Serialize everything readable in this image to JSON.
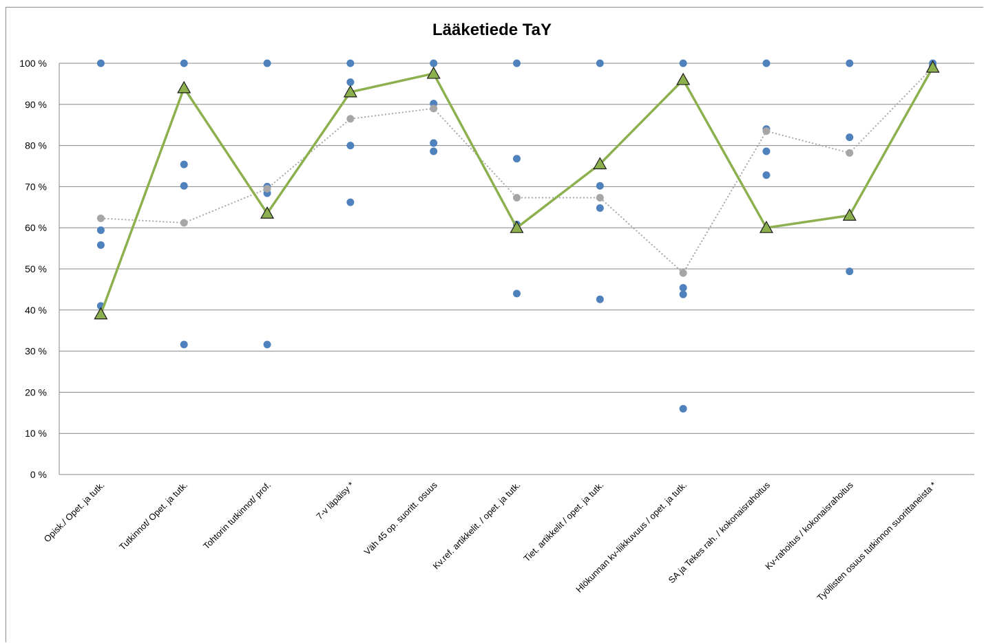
{
  "chart_data": {
    "type": "line",
    "title": "Lääketiede TaY",
    "xlabel": "",
    "ylabel": "",
    "ylim": [
      0,
      100
    ],
    "yticks": [
      "0 %",
      "10 %",
      "20 %",
      "30 %",
      "40 %",
      "50 %",
      "60 %",
      "70 %",
      "80 %",
      "90 %",
      "100 %"
    ],
    "grid": true,
    "categories": [
      "Opisk./ Opet. ja tutk.",
      "Tutkinnot/ Opet. ja tutk.",
      "Tohtorin tutkinnot/ prof.",
      "7-v läpäisy *",
      "Väh 45 op. suoritt. osuus",
      "Kv.ref. artikkelit. / opet. ja tutk.",
      "Tiet. artikkelit / opet. ja tutk.",
      "Hlökunnan kv-liikkuvuus / opet. ja tutk.",
      "SA ja Tekes rah. / kokonaisrahoitus",
      "Kv-rahoitus / kokonaisrahoitus",
      "Työllisten osuus tutkinnon suorittaneista *"
    ],
    "series": [
      {
        "style": "line-triangle",
        "color": "#8db04f",
        "values": [
          39,
          94,
          63.5,
          93,
          97.5,
          60,
          75.5,
          96,
          60,
          63,
          99
        ]
      },
      {
        "style": "dotted-line-markers",
        "color": "#a6a6a6",
        "values": [
          62.3,
          61.2,
          69.5,
          86.5,
          89,
          67.3,
          67.3,
          49,
          83.5,
          78.2,
          99
        ]
      },
      {
        "style": "scatter",
        "color": "#4f81bd",
        "points": [
          [
            0,
            100
          ],
          [
            0,
            59.4
          ],
          [
            0,
            55.8
          ],
          [
            0,
            41
          ],
          [
            1,
            100
          ],
          [
            1,
            75.4
          ],
          [
            1,
            70.2
          ],
          [
            1,
            31.6
          ],
          [
            2,
            100
          ],
          [
            2,
            70
          ],
          [
            2,
            68.4
          ],
          [
            2,
            31.6
          ],
          [
            3,
            100
          ],
          [
            3,
            95.4
          ],
          [
            3,
            80
          ],
          [
            3,
            66.2
          ],
          [
            4,
            100
          ],
          [
            4,
            90.2
          ],
          [
            4,
            80.6
          ],
          [
            4,
            78.6
          ],
          [
            5,
            100
          ],
          [
            5,
            76.8
          ],
          [
            5,
            60.8
          ],
          [
            5,
            44
          ],
          [
            6,
            100
          ],
          [
            6,
            70.2
          ],
          [
            6,
            64.8
          ],
          [
            6,
            42.6
          ],
          [
            7,
            100
          ],
          [
            7,
            45.4
          ],
          [
            7,
            43.8
          ],
          [
            7,
            16
          ],
          [
            8,
            100
          ],
          [
            8,
            84
          ],
          [
            8,
            78.6
          ],
          [
            8,
            72.8
          ],
          [
            9,
            100
          ],
          [
            9,
            82
          ],
          [
            9,
            62.8
          ],
          [
            9,
            49.4
          ],
          [
            10,
            100
          ],
          [
            10,
            99.4
          ]
        ]
      }
    ]
  }
}
